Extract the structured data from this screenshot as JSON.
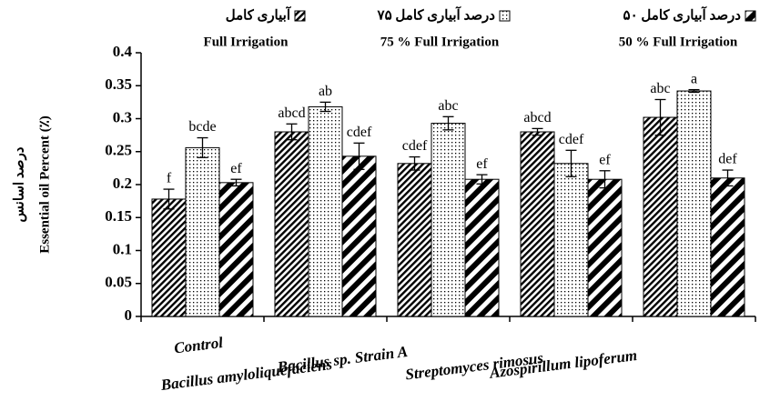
{
  "chart_data": {
    "type": "bar",
    "y_label_fa": "درصد اسانس",
    "y_label": "Essential oil Percent (٪)",
    "categories": [
      "Control",
      "Bacillus amyloliquefaciens",
      "Bacillus sp. Strain A",
      "Streptomyces rimosus",
      "Azospirillum lipoferum"
    ],
    "series": [
      {
        "name": "آبیاری کامل",
        "name_en": "Full Irrigation",
        "color": "#000000",
        "pattern": "hatch",
        "values": [
          0.178,
          0.28,
          0.232,
          0.28,
          0.302
        ],
        "errors": [
          0.015,
          0.012,
          0.01,
          0.005,
          0.027
        ],
        "letters": [
          "f",
          "abcd",
          "cdef",
          "abcd",
          "abc"
        ]
      },
      {
        "name": "۷۵ درصد آبیاری کامل",
        "name_en": "75 % Full Irrigation",
        "color": "#000000",
        "pattern": "dots",
        "values": [
          0.256,
          0.318,
          0.293,
          0.232,
          0.342
        ],
        "errors": [
          0.015,
          0.007,
          0.01,
          0.02,
          0.002
        ],
        "letters": [
          "bcde",
          "ab",
          "abc",
          "cdef",
          "a"
        ]
      },
      {
        "name": "۵۰ درصد آبیاری کامل",
        "name_en": "50 % Full Irrigation",
        "color": "#000000",
        "pattern": "stripes",
        "values": [
          0.203,
          0.243,
          0.208,
          0.208,
          0.21
        ],
        "errors": [
          0.005,
          0.02,
          0.007,
          0.013,
          0.012
        ],
        "letters": [
          "ef",
          "cdef",
          "ef",
          "ef",
          "def"
        ]
      }
    ],
    "ylim": [
      0,
      0.4
    ],
    "yticks": [
      0,
      0.05,
      0.1,
      0.15,
      0.2,
      0.25,
      0.3,
      0.35,
      0.4
    ],
    "grid": false
  }
}
